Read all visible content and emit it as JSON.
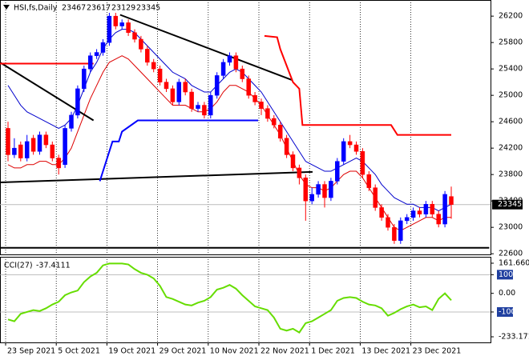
{
  "chart_data": [
    {
      "type": "candlestick",
      "title": "HSI,fs,Daily",
      "categories": [
        "23 Sep 2021",
        null,
        null,
        null,
        null,
        null,
        null,
        null,
        "5 Oct 2021",
        null,
        null,
        null,
        null,
        null,
        null,
        null,
        "19 Oct 2021",
        null,
        null,
        null,
        null,
        null,
        null,
        null,
        "29 Oct 2021",
        null,
        null,
        null,
        null,
        null,
        null,
        null,
        "10 Nov 2021",
        null,
        null,
        null,
        null,
        null,
        null,
        null,
        "22 Nov 2021",
        null,
        null,
        null,
        null,
        null,
        null,
        null,
        "1 Dec 2021",
        null,
        null,
        null,
        null,
        null,
        null,
        null,
        "13 Dec 2021",
        null,
        null,
        null,
        null,
        null,
        null,
        null,
        "23 Dec 2021",
        null,
        null,
        null,
        null,
        null,
        null
      ],
      "open": [
        24500,
        24100,
        24250,
        24050,
        24350,
        24150,
        24400,
        24250,
        24050,
        23950,
        24500,
        24700,
        25100,
        25400,
        25600,
        25650,
        25800,
        26200,
        26050,
        26100,
        25950,
        25850,
        25700,
        25500,
        25400,
        25200,
        25100,
        24900,
        25200,
        25050,
        24800,
        24850,
        24700,
        25000,
        25300,
        25500,
        25600,
        25400,
        25250,
        25000,
        24900,
        24800,
        24650,
        24550,
        24350,
        24100,
        23900,
        23750,
        23400,
        23500,
        23650,
        23450,
        23700,
        24000,
        24300,
        24250,
        24150,
        23800,
        23600,
        23300,
        23150,
        23000,
        22800,
        23100,
        23150,
        23250,
        23200,
        23350,
        23200,
        23050,
        23467
      ],
      "high": [
        24600,
        24350,
        24300,
        24400,
        24400,
        24450,
        24450,
        24300,
        24100,
        24550,
        24750,
        25150,
        25450,
        25650,
        25700,
        25850,
        26250,
        26250,
        26150,
        26150,
        26000,
        25900,
        25750,
        25550,
        25450,
        25250,
        25150,
        25250,
        25250,
        25100,
        24900,
        24900,
        25050,
        25350,
        25550,
        25650,
        25650,
        25450,
        25300,
        25050,
        24950,
        24850,
        24700,
        24600,
        24400,
        24150,
        23950,
        23800,
        23600,
        23700,
        23700,
        23750,
        24050,
        24350,
        24400,
        24300,
        24200,
        23850,
        23650,
        23350,
        23200,
        23050,
        23150,
        23200,
        23300,
        23300,
        23400,
        23400,
        23250,
        23550,
        23617
      ],
      "low": [
        24000,
        24050,
        24000,
        24000,
        24100,
        24100,
        24200,
        24000,
        23800,
        23900,
        24450,
        24650,
        25050,
        25350,
        25550,
        25600,
        25750,
        26000,
        26000,
        25900,
        25800,
        25650,
        25450,
        25350,
        25150,
        25050,
        24850,
        24850,
        25000,
        24750,
        24750,
        24650,
        24650,
        24950,
        25250,
        25450,
        25350,
        25200,
        24950,
        24850,
        24700,
        24600,
        24500,
        24300,
        24050,
        23850,
        23650,
        23100,
        23350,
        23450,
        23300,
        23400,
        23650,
        23950,
        24200,
        24100,
        23750,
        23550,
        23250,
        23100,
        22950,
        22750,
        22750,
        23050,
        23100,
        23150,
        23150,
        23150,
        23000,
        23000,
        23129
      ],
      "close": [
        24100,
        24200,
        24050,
        24300,
        24150,
        24400,
        24250,
        24050,
        23900,
        24500,
        24700,
        25100,
        25400,
        25600,
        25650,
        25800,
        26200,
        26050,
        26100,
        25950,
        25850,
        25700,
        25500,
        25400,
        25200,
        25100,
        24900,
        25200,
        25050,
        24800,
        24850,
        24700,
        25000,
        25300,
        25500,
        25600,
        25400,
        25250,
        25000,
        24900,
        24800,
        24650,
        24550,
        24350,
        24100,
        23900,
        23750,
        23400,
        23500,
        23650,
        23450,
        23700,
        24000,
        24300,
        24250,
        24150,
        23800,
        23600,
        23300,
        23150,
        23000,
        22800,
        23100,
        23150,
        23250,
        23200,
        23350,
        23200,
        23050,
        23500,
        23345
      ],
      "up_color": "#0000ff",
      "down_color": "#ff0000",
      "overlays": [
        {
          "color": "#0000cc",
          "values": [
            25150,
            25000,
            24850,
            24750,
            24700,
            24650,
            24600,
            24550,
            24500,
            24550,
            24650,
            24850,
            25100,
            25350,
            25500,
            25700,
            25850,
            25950,
            26000,
            26000,
            25950,
            25850,
            25750,
            25650,
            25550,
            25450,
            25350,
            25300,
            25250,
            25150,
            25100,
            25050,
            25050,
            25150,
            25250,
            25350,
            25400,
            25350,
            25250,
            25150,
            25050,
            24900,
            24750,
            24600,
            24450,
            24300,
            24150,
            24000,
            23950,
            23900,
            23850,
            23850,
            23900,
            23950,
            24000,
            24050,
            24000,
            23900,
            23800,
            23650,
            23550,
            23450,
            23400,
            23350,
            23350,
            23300,
            23300,
            23300,
            23250,
            23300,
            23350
          ]
        },
        {
          "color": "#dd0000",
          "values": [
            23950,
            23900,
            23900,
            23950,
            23950,
            24000,
            24000,
            23950,
            23950,
            24050,
            24200,
            24450,
            24700,
            24950,
            25150,
            25350,
            25500,
            25550,
            25600,
            25550,
            25450,
            25350,
            25250,
            25150,
            25050,
            24950,
            24850,
            24850,
            24850,
            24800,
            24750,
            24750,
            24800,
            24900,
            25050,
            25150,
            25150,
            25100,
            25050,
            24950,
            24850,
            24700,
            24550,
            24400,
            24200,
            24000,
            23800,
            23650,
            23600,
            23600,
            23550,
            23600,
            23700,
            23800,
            23850,
            23850,
            23750,
            23600,
            23450,
            23300,
            23150,
            23000,
            22950,
            23000,
            23050,
            23100,
            23150,
            23150,
            23100,
            23150,
            23150
          ]
        }
      ],
      "drawings": [
        {
          "color": "#000000",
          "points": [
            [
              -1.3,
              25500
            ],
            [
              13.5,
              24620
            ]
          ]
        },
        {
          "color": "#000000",
          "points": [
            [
              17.7,
              26220
            ],
            [
              44.9,
              25230
            ]
          ]
        },
        {
          "color": "#000000",
          "points": [
            [
              -1.3,
              23680
            ],
            [
              48.1,
              23840
            ]
          ]
        },
        {
          "color": "#000000",
          "points": [
            [
              -1.3,
              22690
            ],
            [
              76,
              22690
            ]
          ]
        },
        {
          "color": "#ff0000",
          "points": [
            [
              -1.3,
              25480
            ],
            [
              13.5,
              25480
            ]
          ]
        },
        {
          "color": "#ff0000",
          "points": [
            [
              40.5,
              25900
            ],
            [
              42.5,
              25880
            ],
            [
              43,
              25700
            ],
            [
              45,
              25200
            ],
            [
              46,
              25100
            ],
            [
              46.5,
              24550
            ],
            [
              60.5,
              24550
            ],
            [
              61.5,
              24400
            ],
            [
              70,
              24400
            ]
          ]
        },
        {
          "color": "#0000ff",
          "points": [
            [
              14.5,
              23700
            ],
            [
              16.5,
              24300
            ],
            [
              17.5,
              24300
            ],
            [
              18,
              24450
            ],
            [
              20.5,
              24620
            ],
            [
              39.5,
              24620
            ]
          ]
        }
      ],
      "ylim": [
        22590,
        26420
      ],
      "yticks": [
        26200,
        25800,
        25400,
        25000,
        24600,
        24200,
        23800,
        23400,
        23000,
        22600
      ],
      "grid": true
    },
    {
      "type": "line",
      "title": "CCI(27)",
      "color": "#66dd00",
      "values": [
        -140,
        -150,
        -110,
        -100,
        -90,
        -95,
        -80,
        -60,
        -45,
        -10,
        5,
        15,
        60,
        90,
        110,
        150,
        160,
        160,
        160,
        155,
        130,
        110,
        100,
        80,
        40,
        -20,
        -30,
        -45,
        -60,
        -65,
        -50,
        -40,
        -20,
        20,
        30,
        45,
        25,
        -10,
        -40,
        -70,
        -80,
        -90,
        -130,
        -190,
        -200,
        -190,
        -210,
        -160,
        -150,
        -130,
        -110,
        -90,
        -40,
        -25,
        -20,
        -25,
        -45,
        -60,
        -65,
        -80,
        -120,
        -105,
        -85,
        -70,
        -60,
        -75,
        -70,
        -90,
        -30,
        0,
        -37.4111
      ],
      "ylim": [
        -233.1711,
        161.6609
      ],
      "yticks": [
        161.6609,
        100,
        {
          "value": 0,
          "label": "0.00"
        },
        -100,
        -233.1711
      ],
      "levels": [
        100,
        -100
      ]
    }
  ]
}
